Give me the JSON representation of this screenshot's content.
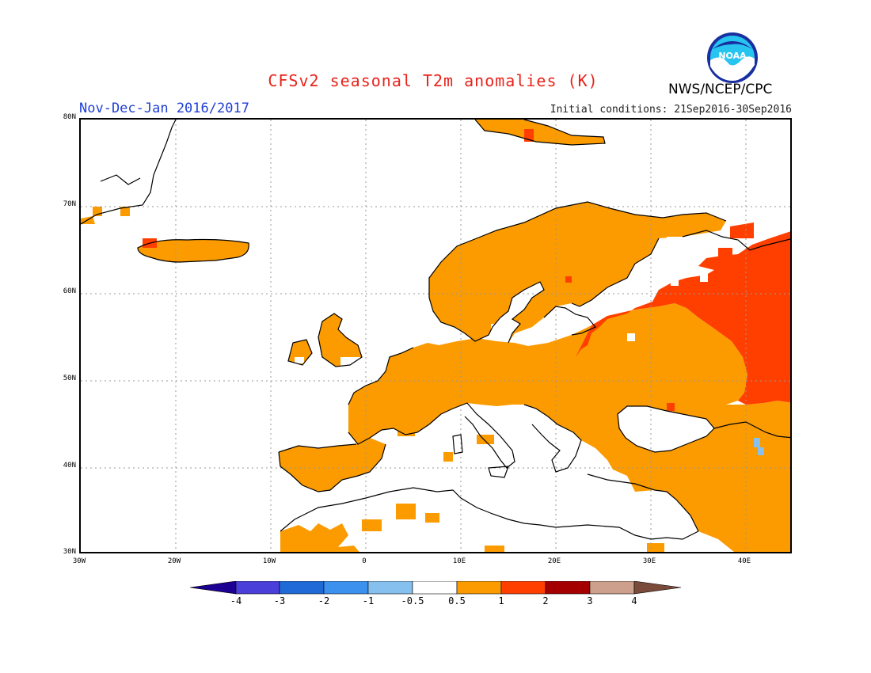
{
  "title": "CFSv2 seasonal T2m anomalies (K)",
  "subtitle_left": "Nov-Dec-Jan 2016/2017",
  "subtitle_right": "Initial conditions: 21Sep2016-30Sep2016",
  "agency": "NWS/NCEP/CPC",
  "logo_text": "NOAA",
  "colors": {
    "title": "#e8231b",
    "subtitle_left": "#1f3fd6",
    "land_outline": "#000000",
    "grid": "#9a9a9a",
    "anom_0_5_1": "#fb9b00",
    "anom_1_2": "#ff3f00",
    "anom_neg_1_neg_0_5": "#86c0ef"
  },
  "map": {
    "projection": "cylindrical",
    "lon_range": [
      -30,
      45
    ],
    "lat_range": [
      30,
      80
    ],
    "lat_ticks": [
      "30N",
      "40N",
      "50N",
      "60N",
      "70N",
      "80N"
    ],
    "lon_ticks": [
      "30W",
      "20W",
      "10W",
      "0",
      "10E",
      "20E",
      "30E",
      "40E"
    ]
  },
  "colorbar": {
    "labels": [
      "-4",
      "-3",
      "-2",
      "-1",
      "-0.5",
      "0.5",
      "1",
      "2",
      "3",
      "4"
    ],
    "colors": [
      "#1b0091",
      "#4a3fd8",
      "#1f6ad6",
      "#3c91ef",
      "#86c0ef",
      "#ffffff",
      "#fb9b00",
      "#ff3f00",
      "#a50000",
      "#cca08c",
      "#7a4a3a"
    ]
  }
}
